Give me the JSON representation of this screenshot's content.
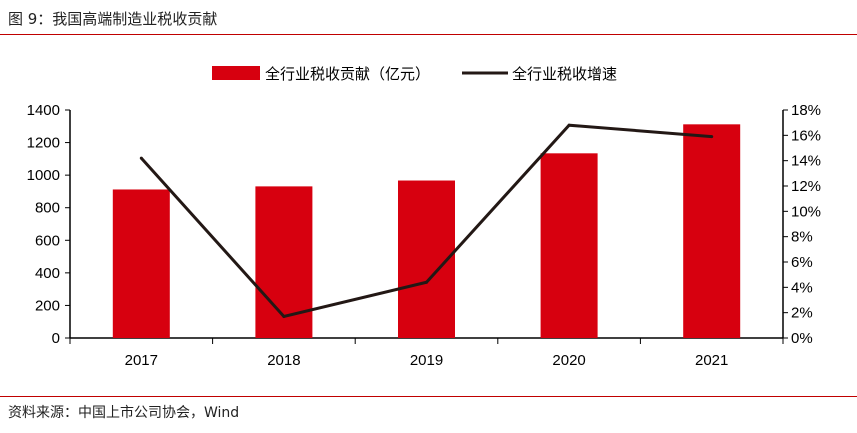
{
  "header": {
    "title": "图 9：我国高端制造业税收贡献"
  },
  "footer": {
    "source": "资料来源：中国上市公司协会，Wind"
  },
  "colors": {
    "bar": "#d7000f",
    "line": "#231815",
    "rule": "#c00000"
  },
  "chart_data": {
    "type": "bar+line",
    "categories": [
      "2017",
      "2018",
      "2019",
      "2020",
      "2021"
    ],
    "series": [
      {
        "name": "全行业税收贡献（亿元）",
        "type": "bar",
        "axis": "left",
        "values": [
          912,
          931,
          967,
          1134,
          1312
        ]
      },
      {
        "name": "全行业税收增速",
        "type": "line",
        "axis": "right",
        "unit": "%",
        "values": [
          14.2,
          1.7,
          4.4,
          16.8,
          15.9
        ]
      }
    ],
    "left_axis": {
      "min": 0,
      "max": 1400,
      "ticks": [
        "0",
        "200",
        "400",
        "600",
        "800",
        "1000",
        "1200",
        "1400"
      ]
    },
    "right_axis": {
      "min": 0,
      "max": 18,
      "ticks": [
        "0%",
        "2%",
        "4%",
        "6%",
        "8%",
        "10%",
        "12%",
        "14%",
        "16%",
        "18%"
      ]
    },
    "legend_position": "top-center",
    "grid": false
  }
}
